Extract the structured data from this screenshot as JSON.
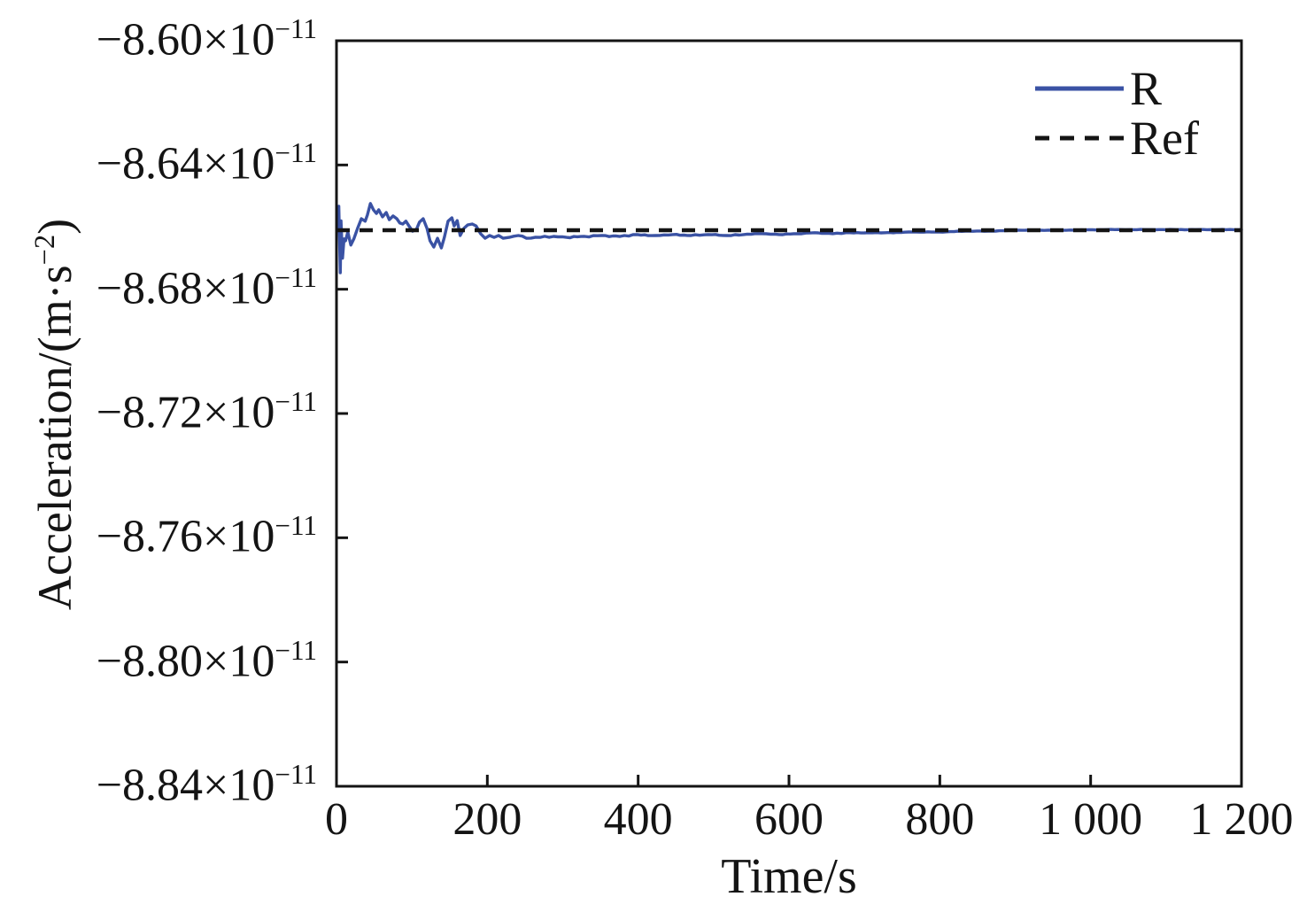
{
  "figure": {
    "background_color": "#ffffff",
    "axis_color": "#141414",
    "text_color": "#141414"
  },
  "chart_data": {
    "type": "line",
    "title": "",
    "xlabel": "Time/s",
    "ylabel_prefix": "Acceleration/(m·s",
    "ylabel_exponent": "−2",
    "ylabel_suffix": ")",
    "xlim": [
      0,
      1200
    ],
    "ylim": [
      -8.84,
      -8.6
    ],
    "y_unit_scale": "1e-11",
    "grid": false,
    "xticks": [
      0,
      200,
      400,
      600,
      800,
      1000,
      1200
    ],
    "xtick_labels": [
      "0",
      "200",
      "400",
      "600",
      "800",
      "1 000",
      "1 200"
    ],
    "yticks": [
      -8.6,
      -8.64,
      -8.68,
      -8.72,
      -8.76,
      -8.8,
      -8.84
    ],
    "ytick_labels": [
      {
        "mantissa": "−8.60×10",
        "exponent": "−11"
      },
      {
        "mantissa": "−8.64×10",
        "exponent": "−11"
      },
      {
        "mantissa": "−8.68×10",
        "exponent": "−11"
      },
      {
        "mantissa": "−8.72×10",
        "exponent": "−11"
      },
      {
        "mantissa": "−8.76×10",
        "exponent": "−11"
      },
      {
        "mantissa": "−8.80×10",
        "exponent": "−11"
      },
      {
        "mantissa": "−8.84×10",
        "exponent": "−11"
      }
    ],
    "series": [
      {
        "name": "R",
        "color": "#3a52a4",
        "style": "solid",
        "x": [
          3,
          5,
          6,
          8,
          10,
          12,
          15,
          19,
          23,
          28,
          33,
          38,
          41,
          45,
          49,
          53,
          56,
          61,
          66,
          70,
          75,
          80,
          84,
          88,
          92,
          96,
          101,
          106,
          110,
          115,
          120,
          124,
          129,
          134,
          139,
          143,
          148,
          153,
          156,
          160,
          164,
          169,
          174,
          180,
          185,
          191,
          197,
          203,
          209,
          215,
          221,
          229,
          241,
          252,
          270,
          288,
          305,
          329,
          352,
          376,
          399,
          423,
          446,
          470,
          493,
          517,
          540,
          564,
          587,
          611,
          634,
          658,
          681,
          705,
          728,
          764,
          799,
          834,
          869,
          904,
          963,
          1022,
          1081,
          1139,
          1200
        ],
        "y": [
          -8.6533,
          -8.6747,
          -8.658,
          -8.67,
          -8.6638,
          -8.6644,
          -8.6616,
          -8.6658,
          -8.6638,
          -8.6604,
          -8.6573,
          -8.6581,
          -8.6561,
          -8.6524,
          -8.6544,
          -8.6556,
          -8.6544,
          -8.6567,
          -8.6553,
          -8.6576,
          -8.6564,
          -8.6573,
          -8.6587,
          -8.659,
          -8.6581,
          -8.6596,
          -8.6613,
          -8.6607,
          -8.6584,
          -8.6573,
          -8.6604,
          -8.6644,
          -8.6664,
          -8.6636,
          -8.6667,
          -8.6633,
          -8.6581,
          -8.657,
          -8.6596,
          -8.6579,
          -8.6627,
          -8.6604,
          -8.6593,
          -8.659,
          -8.6596,
          -8.6621,
          -8.6636,
          -8.6627,
          -8.6633,
          -8.6627,
          -8.6636,
          -8.6633,
          -8.6627,
          -8.6636,
          -8.6633,
          -8.663,
          -8.6633,
          -8.663,
          -8.6627,
          -8.663,
          -8.6624,
          -8.6627,
          -8.6624,
          -8.6627,
          -8.6624,
          -8.6627,
          -8.6624,
          -8.6621,
          -8.6624,
          -8.6621,
          -8.6618,
          -8.6621,
          -8.6618,
          -8.6618,
          -8.6618,
          -8.6616,
          -8.6616,
          -8.6613,
          -8.6613,
          -8.661,
          -8.661,
          -8.6608,
          -8.6608,
          -8.6608,
          -8.6608
        ]
      }
    ],
    "ref_line": {
      "name": "Ref",
      "value": -8.661,
      "color": "#141414",
      "style": "dashed"
    },
    "legend": {
      "position": "top-right",
      "entries": [
        {
          "label": "R",
          "color": "#3a52a4",
          "style": "solid"
        },
        {
          "label": "Ref",
          "color": "#141414",
          "style": "dashed"
        }
      ]
    }
  }
}
